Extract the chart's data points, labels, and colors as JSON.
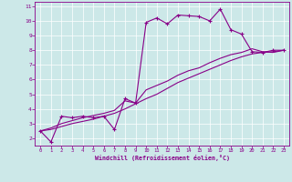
{
  "xlabel": "Windchill (Refroidissement éolien,°C)",
  "bg_color": "#cce8e8",
  "line_color": "#880088",
  "xlim": [
    -0.5,
    23.5
  ],
  "ylim": [
    1.5,
    11.3
  ],
  "xticks": [
    0,
    1,
    2,
    3,
    4,
    5,
    6,
    7,
    8,
    9,
    10,
    11,
    12,
    13,
    14,
    15,
    16,
    17,
    18,
    19,
    20,
    21,
    22,
    23
  ],
  "yticks": [
    2,
    3,
    4,
    5,
    6,
    7,
    8,
    9,
    10,
    11
  ],
  "series1_x": [
    0,
    1,
    2,
    3,
    4,
    5,
    6,
    7,
    8,
    9,
    10,
    11,
    12,
    13,
    14,
    15,
    16,
    17,
    18,
    19,
    20,
    21,
    22,
    23
  ],
  "series1_y": [
    2.5,
    1.75,
    3.5,
    3.4,
    3.5,
    3.4,
    3.5,
    2.6,
    4.7,
    4.4,
    9.9,
    10.2,
    9.8,
    10.4,
    10.35,
    10.3,
    10.0,
    10.8,
    9.4,
    9.1,
    7.9,
    7.85,
    8.0,
    8.0
  ],
  "series2_x": [
    0,
    1,
    2,
    3,
    4,
    5,
    6,
    7,
    8,
    9,
    10,
    11,
    12,
    13,
    14,
    15,
    16,
    17,
    18,
    19,
    20,
    21,
    22,
    23
  ],
  "series2_y": [
    2.5,
    2.6,
    2.8,
    3.0,
    3.15,
    3.3,
    3.5,
    3.7,
    4.0,
    4.35,
    4.7,
    5.0,
    5.4,
    5.8,
    6.1,
    6.4,
    6.7,
    7.0,
    7.3,
    7.55,
    7.75,
    7.85,
    7.9,
    8.0
  ],
  "series3_x": [
    0,
    1,
    2,
    3,
    4,
    5,
    6,
    7,
    8,
    9,
    10,
    11,
    12,
    13,
    14,
    15,
    16,
    17,
    18,
    19,
    20,
    21,
    22,
    23
  ],
  "series3_y": [
    2.5,
    2.7,
    3.0,
    3.2,
    3.4,
    3.55,
    3.7,
    3.9,
    4.55,
    4.4,
    5.3,
    5.6,
    5.9,
    6.3,
    6.6,
    6.8,
    7.15,
    7.45,
    7.7,
    7.85,
    8.1,
    7.9,
    7.85,
    8.0
  ]
}
